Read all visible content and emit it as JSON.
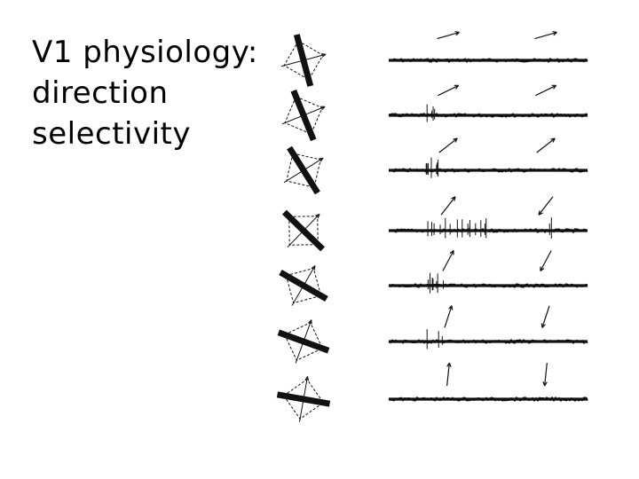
{
  "slide": {
    "title_lines": [
      "V1 physiology:",
      "direction",
      "selectivity"
    ]
  },
  "figure": {
    "ink": "#111111",
    "trials": [
      {
        "orientation": "steep-left",
        "response": "none"
      },
      {
        "orientation": "steep-left",
        "response": "weak"
      },
      {
        "orientation": "oblique-left",
        "response": "moderate"
      },
      {
        "orientation": "diagonal",
        "response": "strong"
      },
      {
        "orientation": "oblique-right",
        "response": "moderate"
      },
      {
        "orientation": "shallow-right",
        "response": "weak"
      },
      {
        "orientation": "near-horizontal",
        "response": "none"
      }
    ]
  }
}
